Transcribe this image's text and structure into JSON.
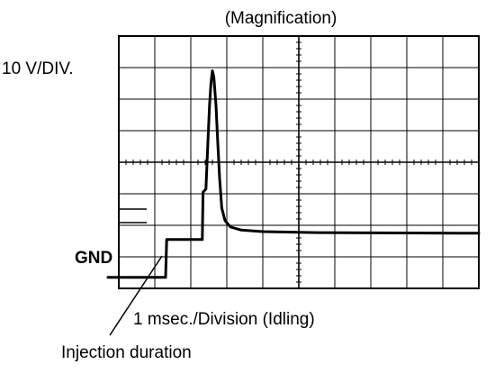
{
  "figure": {
    "title": "(Magnification)",
    "volts_label": "10 V/DIV.",
    "gnd_label": "GND",
    "time_label": "1 msec./Division (Idling)",
    "callout_label": "Injection duration"
  },
  "scope": {
    "divisions_x": 10,
    "divisions_y": 8,
    "minor_ticks_per_division": 5
  },
  "waveform": {
    "points": [
      [
        -0.3,
        0.35
      ],
      [
        0.1,
        0.35
      ],
      [
        1.0,
        0.35
      ],
      [
        1.3,
        0.35
      ],
      [
        1.33,
        1.55
      ],
      [
        1.7,
        1.55
      ],
      [
        2.32,
        1.55
      ],
      [
        2.34,
        3.05
      ],
      [
        2.38,
        3.1
      ],
      [
        2.42,
        3.15
      ],
      [
        2.47,
        4.5
      ],
      [
        2.52,
        5.8
      ],
      [
        2.56,
        6.5
      ],
      [
        2.6,
        6.9
      ],
      [
        2.64,
        6.7
      ],
      [
        2.7,
        5.8
      ],
      [
        2.75,
        4.6
      ],
      [
        2.8,
        3.5
      ],
      [
        2.86,
        2.55
      ],
      [
        2.95,
        2.15
      ],
      [
        3.1,
        1.95
      ],
      [
        3.4,
        1.85
      ],
      [
        4.0,
        1.8
      ],
      [
        5.5,
        1.77
      ],
      [
        7.0,
        1.76
      ],
      [
        10.0,
        1.75
      ]
    ]
  },
  "colors": {
    "ink": "#000000",
    "paper": "#ffffff"
  }
}
